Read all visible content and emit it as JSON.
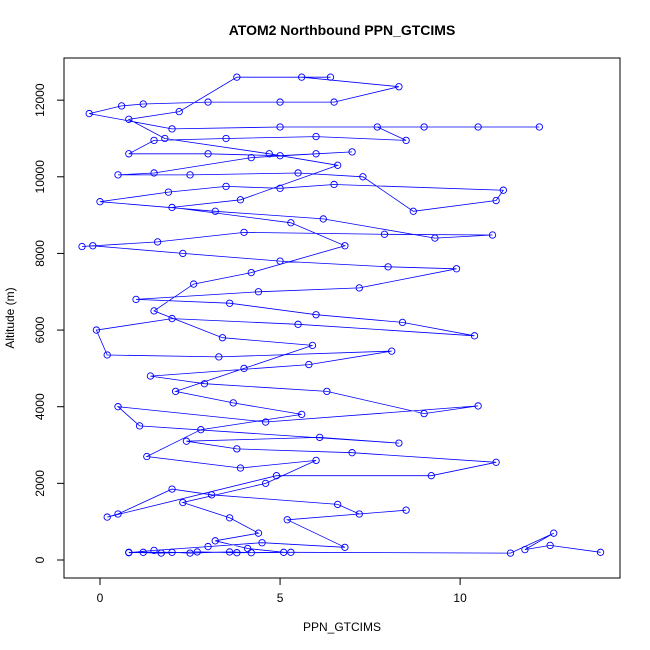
{
  "chart_data": {
    "type": "line",
    "title": "ATOM2 Northbound PPN_GTCIMS",
    "xlabel": "PPN_GTCIMS",
    "ylabel": "Altitude (m)",
    "color": "#0000ff",
    "xlim": [
      -1.0,
      14.44
    ],
    "ylim": [
      -470,
      13100
    ],
    "xticks": [
      0,
      5,
      10
    ],
    "yticks": [
      0,
      2000,
      4000,
      6000,
      8000,
      10000,
      12000
    ],
    "x": [
      13.9,
      12.5,
      11.8,
      12.6,
      11.4,
      5.3,
      4.2,
      3.6,
      2.5,
      2.0,
      1.2,
      0.8,
      1.5,
      3.0,
      4.5,
      6.8,
      5.2,
      8.5,
      7.2,
      6.6,
      3.1,
      2.0,
      0.5,
      0.2,
      4.9,
      9.2,
      11,
      7.0,
      3.8,
      2.4,
      6.1,
      8.3,
      1.1,
      0.5,
      4.6,
      10.5,
      9.0,
      6.3,
      2.9,
      1.4,
      5.8,
      8.1,
      3.3,
      0.2,
      -0.1,
      2.0,
      5.5,
      10.4,
      8.4,
      6.0,
      3.6,
      1.0,
      4.4,
      7.2,
      9.9,
      8.0,
      5.0,
      2.3,
      -0.2,
      -0.5,
      1.6,
      4.0,
      7.9,
      10.9,
      9.3,
      6.2,
      3.2,
      0.0,
      1.9,
      3.5,
      5.0,
      6.5,
      11.2,
      11.0,
      8.7,
      7.3,
      5.5,
      2.5,
      0.5,
      1.5,
      4.2,
      6.0,
      7.0,
      5.0,
      3.0,
      0.8,
      1.5,
      3.5,
      6.0,
      8.5,
      7.7,
      10.5,
      12.2,
      9.0,
      5.0,
      2.0,
      -0.3,
      0.6,
      1.2,
      3.0,
      5.0,
      6.5,
      8.3,
      5.6,
      6.4,
      3.8,
      2.2,
      0.8,
      1.8,
      4.7,
      6.6,
      3.9,
      2.0,
      5.3,
      6.8,
      4.2,
      2.6,
      1.5,
      3.4,
      5.9,
      4.0,
      2.1,
      3.7,
      5.6,
      2.8,
      1.3,
      3.9,
      6.0,
      4.6,
      2.3,
      3.6,
      4.4,
      3.2,
      4.1,
      5.1,
      3.8,
      2.7,
      1.7,
      0.8
    ],
    "values": [
      200,
      380,
      270,
      700,
      180,
      200,
      190,
      210,
      180,
      200,
      200,
      190,
      250,
      350,
      450,
      330,
      1050,
      1300,
      1200,
      1450,
      1700,
      1850,
      1200,
      1120,
      2200,
      2200,
      2550,
      2800,
      2900,
      3100,
      3200,
      3050,
      3500,
      4000,
      3600,
      4020,
      3820,
      4400,
      4600,
      4800,
      5100,
      5450,
      5300,
      5350,
      6000,
      6300,
      6150,
      5850,
      6200,
      6400,
      6700,
      6800,
      7000,
      7100,
      7600,
      7650,
      7800,
      8000,
      8200,
      8180,
      8300,
      8550,
      8500,
      8480,
      8400,
      8900,
      9100,
      9350,
      9600,
      9750,
      9700,
      9800,
      9650,
      9380,
      9100,
      10000,
      10100,
      10050,
      10050,
      10100,
      10500,
      10600,
      10650,
      10550,
      10600,
      10600,
      10950,
      11000,
      11050,
      10950,
      11300,
      11300,
      11300,
      11300,
      11300,
      11250,
      11650,
      11850,
      11900,
      11950,
      11950,
      11950,
      12350,
      12600,
      12600,
      12600,
      11700,
      11500,
      11000,
      10600,
      10300,
      9400,
      9200,
      8800,
      8200,
      7500,
      7200,
      6500,
      5800,
      5600,
      5000,
      4400,
      4100,
      3800,
      3400,
      2700,
      2400,
      2600,
      2000,
      1500,
      1100,
      700,
      500,
      300,
      200,
      190,
      210,
      180,
      200
    ]
  }
}
